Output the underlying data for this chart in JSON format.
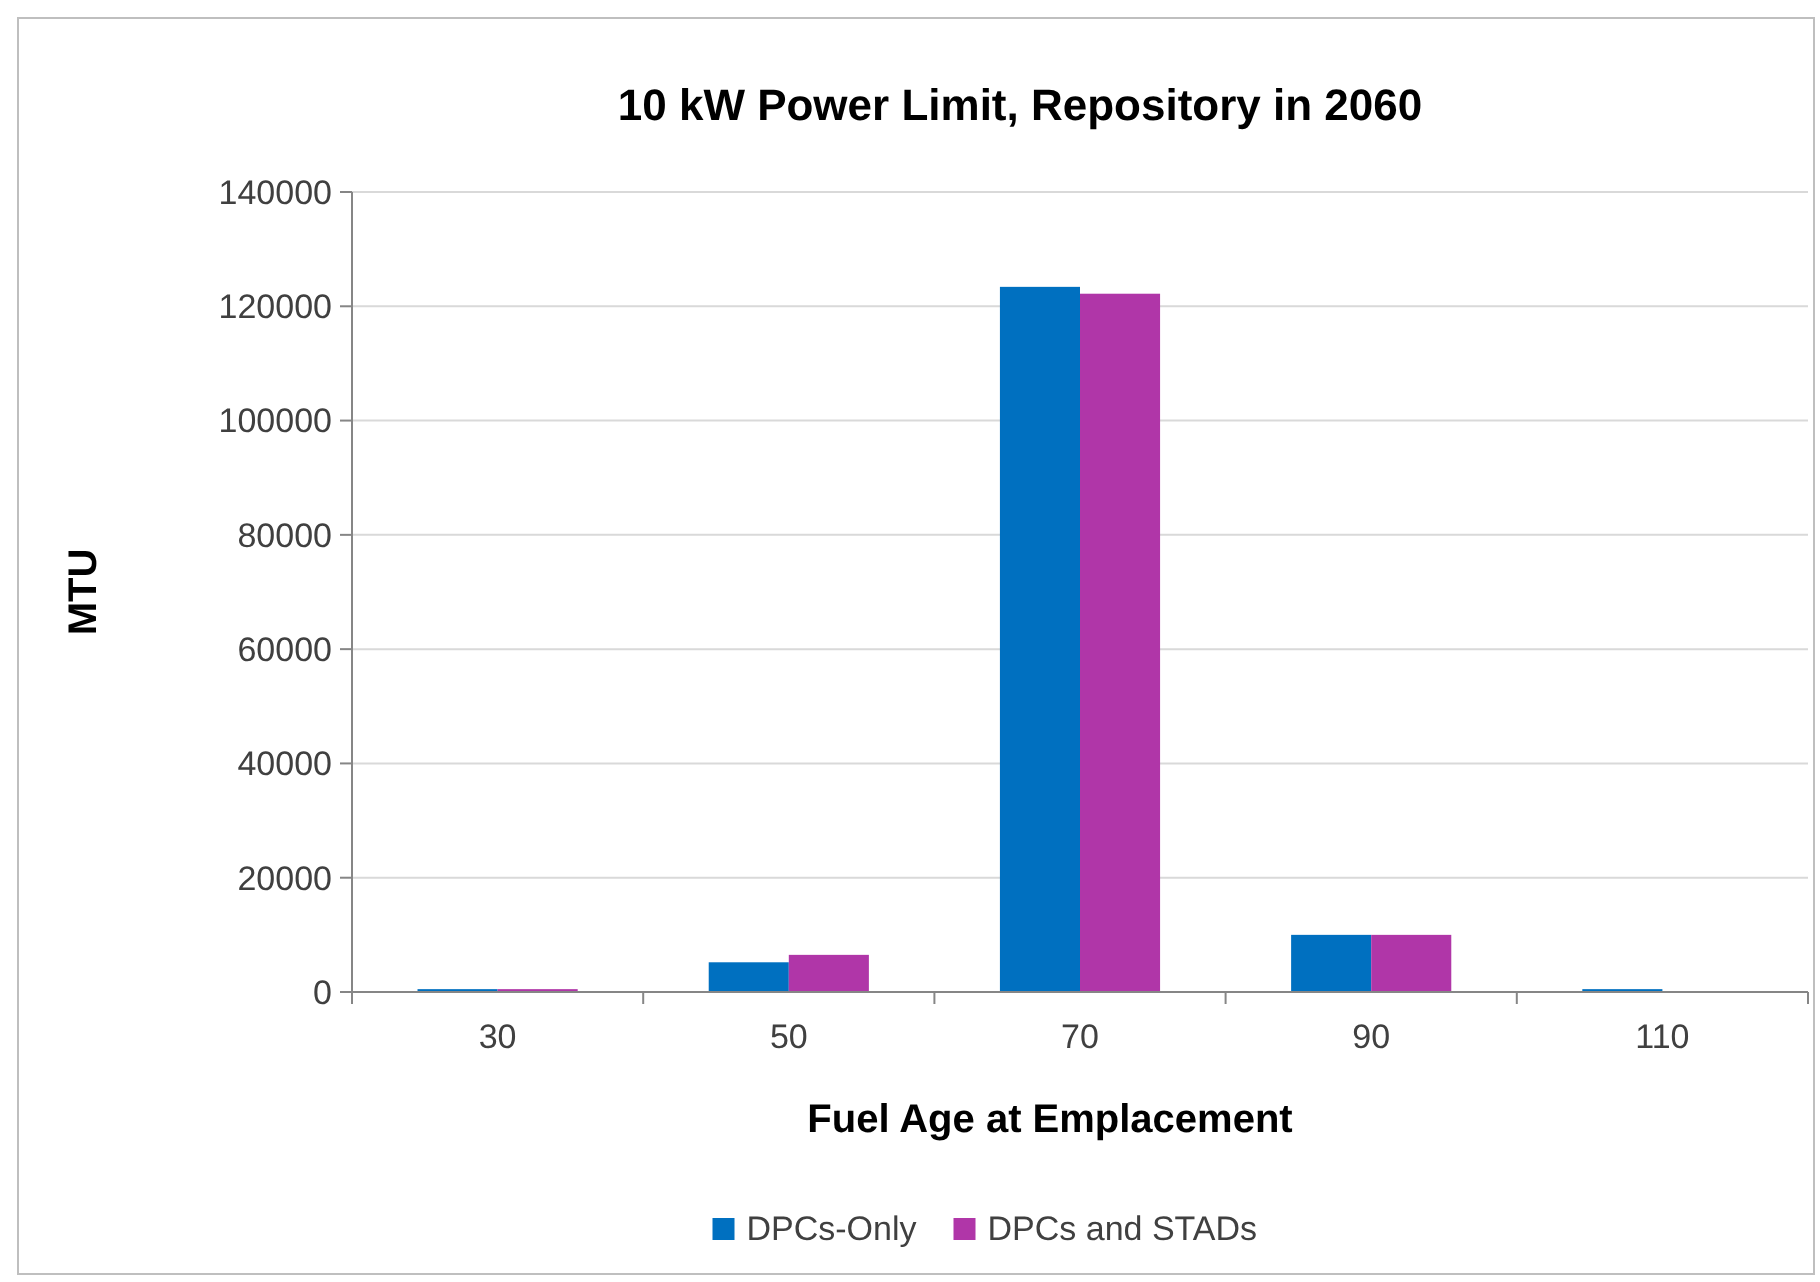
{
  "chart_data": {
    "type": "bar",
    "title": "10 kW Power Limit, Repository in 2060",
    "xlabel": "Fuel Age at Emplacement",
    "ylabel": "MTU",
    "categories": [
      "30",
      "50",
      "70",
      "90",
      "110"
    ],
    "series": [
      {
        "name": "DPCs-Only",
        "color": "#0070c0",
        "values": [
          500,
          5200,
          123400,
          10000,
          500
        ]
      },
      {
        "name": "DPCs and STADs",
        "color": "#b036a8",
        "values": [
          500,
          6500,
          122200,
          10000,
          0
        ]
      }
    ],
    "ylim": [
      0,
      140000
    ],
    "yticks": [
      0,
      20000,
      40000,
      60000,
      80000,
      100000,
      120000,
      140000
    ],
    "grid": "y",
    "legend": "bottom"
  }
}
